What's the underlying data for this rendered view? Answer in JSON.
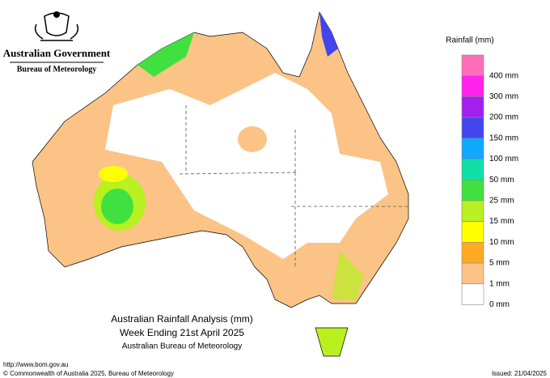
{
  "header": {
    "government": "Australian Government",
    "bureau": "Bureau of Meteorology"
  },
  "legend": {
    "title": "Rainfall (mm)",
    "items": [
      {
        "label": "400 mm",
        "color": "#ff6fb8"
      },
      {
        "label": "300 mm",
        "color": "#ff22ee"
      },
      {
        "label": "200 mm",
        "color": "#a020f0"
      },
      {
        "label": "150 mm",
        "color": "#4444ee"
      },
      {
        "label": "100 mm",
        "color": "#10a8ff"
      },
      {
        "label": "50 mm",
        "color": "#10e0a8"
      },
      {
        "label": "25 mm",
        "color": "#40e040"
      },
      {
        "label": "15 mm",
        "color": "#b8f020"
      },
      {
        "label": "10 mm",
        "color": "#ffff00"
      },
      {
        "label": "5 mm",
        "color": "#ffaa22"
      },
      {
        "label": "1 mm",
        "color": "#fbc386"
      },
      {
        "label": "0 mm",
        "color": "#ffffff"
      }
    ]
  },
  "caption": {
    "title": "Australian Rainfall Analysis (mm)",
    "subtitle": "Week Ending 21st April 2025",
    "source": "Australian Bureau of Meteorology"
  },
  "footer": {
    "url": "http://www.bom.gov.au",
    "copyright": "© Commonwealth of Australia 2025, Bureau of Meteorology",
    "issued": "Issued: 21/04/2025"
  }
}
